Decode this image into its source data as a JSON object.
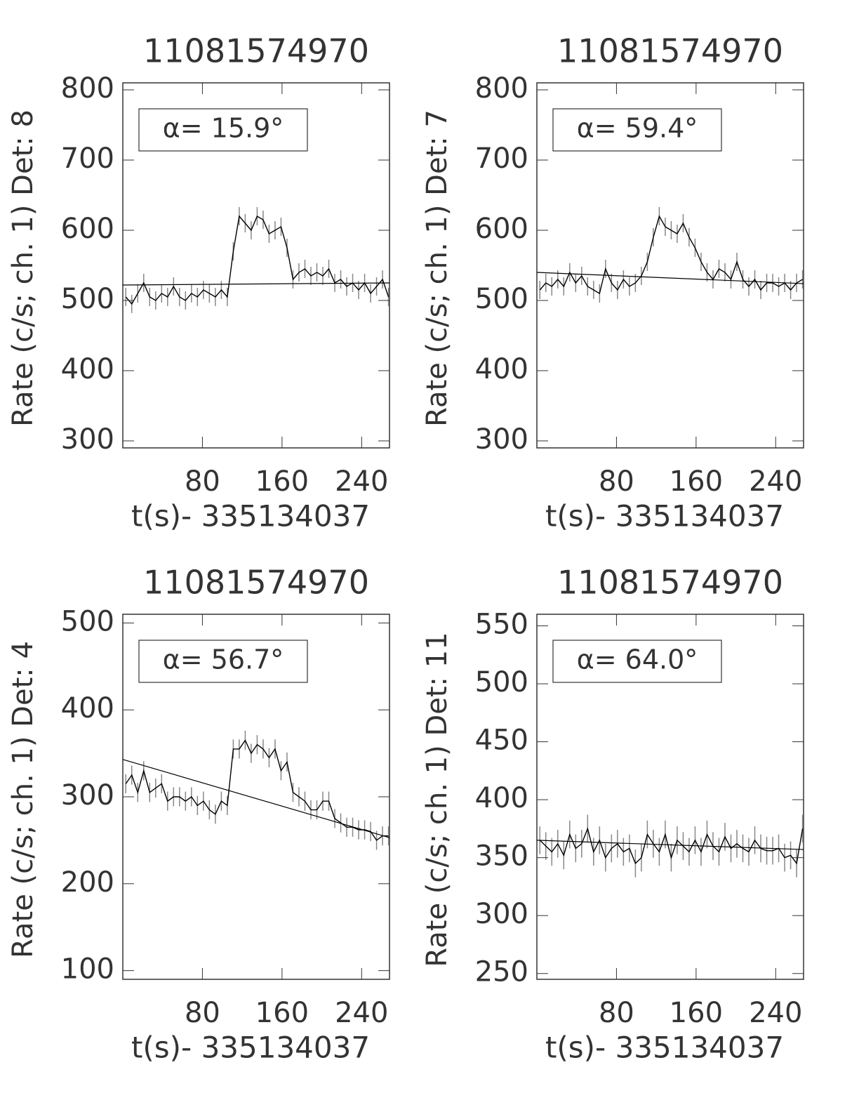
{
  "chart_data": [
    {
      "type": "line",
      "title": "11081574970",
      "xlabel": "t(s)- 335134037",
      "ylabel": "Rate (c/s; ch. 1) Det: 8",
      "annotation": "α= 15.9°",
      "color": "#000000",
      "error_color": "#888888",
      "x": [
        3,
        9,
        15,
        21,
        27,
        33,
        39,
        45,
        51,
        57,
        63,
        69,
        75,
        81,
        87,
        93,
        99,
        105,
        111,
        117,
        123,
        129,
        135,
        141,
        147,
        153,
        159,
        165,
        171,
        177,
        183,
        189,
        195,
        201,
        207,
        213,
        219,
        225,
        231,
        237,
        243,
        249,
        255,
        261,
        267
      ],
      "values": [
        505,
        495,
        510,
        525,
        505,
        500,
        510,
        505,
        520,
        505,
        500,
        510,
        505,
        515,
        510,
        505,
        515,
        505,
        570,
        620,
        610,
        600,
        620,
        615,
        595,
        600,
        605,
        575,
        530,
        540,
        545,
        535,
        540,
        535,
        545,
        525,
        530,
        520,
        525,
        515,
        525,
        510,
        520,
        530,
        505
      ],
      "error": 13,
      "fit": {
        "x": [
          0,
          268
        ],
        "values": [
          522,
          525
        ]
      },
      "xlim": [
        0,
        268
      ],
      "ylim": [
        290,
        810
      ],
      "xticks": [
        80,
        160,
        240
      ],
      "yticks": [
        300,
        400,
        500,
        600,
        700,
        800
      ]
    },
    {
      "type": "line",
      "title": "11081574970",
      "xlabel": "t(s)- 335134037",
      "ylabel": "Rate (c/s; ch. 1) Det: 7",
      "annotation": "α= 59.4°",
      "color": "#000000",
      "error_color": "#888888",
      "x": [
        3,
        9,
        15,
        21,
        27,
        33,
        39,
        45,
        51,
        57,
        63,
        69,
        75,
        81,
        87,
        93,
        99,
        105,
        111,
        117,
        123,
        129,
        135,
        141,
        147,
        153,
        159,
        165,
        171,
        177,
        183,
        189,
        195,
        201,
        207,
        213,
        219,
        225,
        231,
        237,
        243,
        249,
        255,
        261,
        267
      ],
      "values": [
        515,
        525,
        520,
        530,
        520,
        540,
        525,
        535,
        520,
        515,
        510,
        545,
        525,
        515,
        530,
        520,
        525,
        535,
        555,
        590,
        620,
        605,
        600,
        595,
        610,
        590,
        575,
        555,
        540,
        530,
        545,
        540,
        530,
        555,
        530,
        520,
        530,
        515,
        525,
        525,
        520,
        525,
        515,
        525,
        530
      ],
      "error": 13,
      "fit": {
        "x": [
          0,
          268
        ],
        "values": [
          540,
          524
        ]
      },
      "xlim": [
        0,
        268
      ],
      "ylim": [
        290,
        810
      ],
      "xticks": [
        80,
        160,
        240
      ],
      "yticks": [
        300,
        400,
        500,
        600,
        700,
        800
      ]
    },
    {
      "type": "line",
      "title": "11081574970",
      "xlabel": "t(s)- 335134037",
      "ylabel": "Rate (c/s; ch. 1) Det: 4",
      "annotation": "α= 56.7°",
      "color": "#000000",
      "error_color": "#888888",
      "x": [
        3,
        9,
        15,
        21,
        27,
        33,
        39,
        45,
        51,
        57,
        63,
        69,
        75,
        81,
        87,
        93,
        99,
        105,
        111,
        117,
        123,
        129,
        135,
        141,
        147,
        153,
        159,
        165,
        171,
        177,
        183,
        189,
        195,
        201,
        207,
        213,
        219,
        225,
        231,
        237,
        243,
        249,
        255,
        261,
        267
      ],
      "values": [
        315,
        325,
        305,
        330,
        305,
        310,
        315,
        295,
        300,
        300,
        295,
        300,
        290,
        295,
        285,
        280,
        295,
        290,
        355,
        355,
        365,
        350,
        360,
        355,
        345,
        355,
        330,
        340,
        305,
        300,
        295,
        285,
        285,
        295,
        295,
        275,
        270,
        265,
        265,
        262,
        262,
        260,
        250,
        255,
        255
      ],
      "error": 11,
      "fit": {
        "x": [
          0,
          268
        ],
        "values": [
          343,
          253
        ]
      },
      "xlim": [
        0,
        268
      ],
      "ylim": [
        90,
        510
      ],
      "xticks": [
        80,
        160,
        240
      ],
      "yticks": [
        100,
        200,
        300,
        400,
        500
      ]
    },
    {
      "type": "line",
      "title": "11081574970",
      "xlabel": "t(s)- 335134037",
      "ylabel": "Rate (c/s; ch. 1) Det: 11",
      "annotation": "α= 64.0°",
      "color": "#000000",
      "error_color": "#888888",
      "x": [
        3,
        9,
        15,
        21,
        27,
        33,
        39,
        45,
        51,
        57,
        63,
        69,
        75,
        81,
        87,
        93,
        99,
        105,
        111,
        117,
        123,
        129,
        135,
        141,
        147,
        153,
        159,
        165,
        171,
        177,
        183,
        189,
        195,
        201,
        207,
        213,
        219,
        225,
        231,
        237,
        243,
        249,
        255,
        261,
        267
      ],
      "values": [
        365,
        360,
        355,
        362,
        352,
        370,
        358,
        362,
        375,
        355,
        365,
        350,
        358,
        362,
        355,
        358,
        345,
        350,
        370,
        362,
        355,
        370,
        350,
        365,
        360,
        355,
        365,
        355,
        370,
        360,
        355,
        368,
        358,
        362,
        358,
        355,
        365,
        358,
        356,
        356,
        358,
        350,
        352,
        345,
        375
      ],
      "error": 12,
      "fit": {
        "x": [
          0,
          268
        ],
        "values": [
          365,
          357
        ]
      },
      "xlim": [
        0,
        268
      ],
      "ylim": [
        245,
        560
      ],
      "xticks": [
        80,
        160,
        240
      ],
      "yticks": [
        250,
        300,
        350,
        400,
        450,
        500,
        550
      ]
    }
  ]
}
